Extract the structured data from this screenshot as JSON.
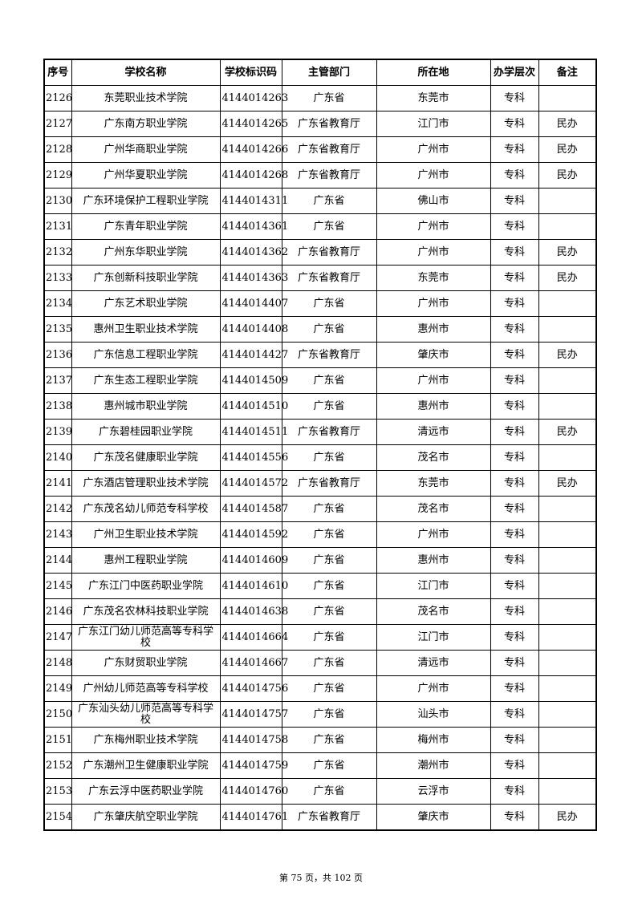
{
  "table": {
    "headers": [
      "序号",
      "学校名称",
      "学校标识码",
      "主管部门",
      "所在地",
      "办学层次",
      "备注"
    ],
    "rows": [
      [
        "2126",
        "东莞职业技术学院",
        "4144014263",
        "广东省",
        "东莞市",
        "专科",
        ""
      ],
      [
        "2127",
        "广东南方职业学院",
        "4144014265",
        "广东省教育厅",
        "江门市",
        "专科",
        "民办"
      ],
      [
        "2128",
        "广州华商职业学院",
        "4144014266",
        "广东省教育厅",
        "广州市",
        "专科",
        "民办"
      ],
      [
        "2129",
        "广州华夏职业学院",
        "4144014268",
        "广东省教育厅",
        "广州市",
        "专科",
        "民办"
      ],
      [
        "2130",
        "广东环境保护工程职业学院",
        "4144014311",
        "广东省",
        "佛山市",
        "专科",
        ""
      ],
      [
        "2131",
        "广东青年职业学院",
        "4144014361",
        "广东省",
        "广州市",
        "专科",
        ""
      ],
      [
        "2132",
        "广州东华职业学院",
        "4144014362",
        "广东省教育厅",
        "广州市",
        "专科",
        "民办"
      ],
      [
        "2133",
        "广东创新科技职业学院",
        "4144014363",
        "广东省教育厅",
        "东莞市",
        "专科",
        "民办"
      ],
      [
        "2134",
        "广东艺术职业学院",
        "4144014407",
        "广东省",
        "广州市",
        "专科",
        ""
      ],
      [
        "2135",
        "惠州卫生职业技术学院",
        "4144014408",
        "广东省",
        "惠州市",
        "专科",
        ""
      ],
      [
        "2136",
        "广东信息工程职业学院",
        "4144014427",
        "广东省教育厅",
        "肇庆市",
        "专科",
        "民办"
      ],
      [
        "2137",
        "广东生态工程职业学院",
        "4144014509",
        "广东省",
        "广州市",
        "专科",
        ""
      ],
      [
        "2138",
        "惠州城市职业学院",
        "4144014510",
        "广东省",
        "惠州市",
        "专科",
        ""
      ],
      [
        "2139",
        "广东碧桂园职业学院",
        "4144014511",
        "广东省教育厅",
        "清远市",
        "专科",
        "民办"
      ],
      [
        "2140",
        "广东茂名健康职业学院",
        "4144014556",
        "广东省",
        "茂名市",
        "专科",
        ""
      ],
      [
        "2141",
        "广东酒店管理职业技术学院",
        "4144014572",
        "广东省教育厅",
        "东莞市",
        "专科",
        "民办"
      ],
      [
        "2142",
        "广东茂名幼儿师范专科学校",
        "4144014587",
        "广东省",
        "茂名市",
        "专科",
        ""
      ],
      [
        "2143",
        "广州卫生职业技术学院",
        "4144014592",
        "广东省",
        "广州市",
        "专科",
        ""
      ],
      [
        "2144",
        "惠州工程职业学院",
        "4144014609",
        "广东省",
        "惠州市",
        "专科",
        ""
      ],
      [
        "2145",
        "广东江门中医药职业学院",
        "4144014610",
        "广东省",
        "江门市",
        "专科",
        ""
      ],
      [
        "2146",
        "广东茂名农林科技职业学院",
        "4144014638",
        "广东省",
        "茂名市",
        "专科",
        ""
      ],
      [
        "2147",
        "广东江门幼儿师范高等专科学校",
        "4144014664",
        "广东省",
        "江门市",
        "专科",
        ""
      ],
      [
        "2148",
        "广东财贸职业学院",
        "4144014667",
        "广东省",
        "清远市",
        "专科",
        ""
      ],
      [
        "2149",
        "广州幼儿师范高等专科学校",
        "4144014756",
        "广东省",
        "广州市",
        "专科",
        ""
      ],
      [
        "2150",
        "广东汕头幼儿师范高等专科学校",
        "4144014757",
        "广东省",
        "汕头市",
        "专科",
        ""
      ],
      [
        "2151",
        "广东梅州职业技术学院",
        "4144014758",
        "广东省",
        "梅州市",
        "专科",
        ""
      ],
      [
        "2152",
        "广东潮州卫生健康职业学院",
        "4144014759",
        "广东省",
        "潮州市",
        "专科",
        ""
      ],
      [
        "2153",
        "广东云浮中医药职业学院",
        "4144014760",
        "广东省",
        "云浮市",
        "专科",
        ""
      ],
      [
        "2154",
        "广东肇庆航空职业学院",
        "4144014761",
        "广东省教育厅",
        "肇庆市",
        "专科",
        "民办"
      ]
    ]
  },
  "footer": {
    "page_text": "第 75 页，共 102 页"
  }
}
